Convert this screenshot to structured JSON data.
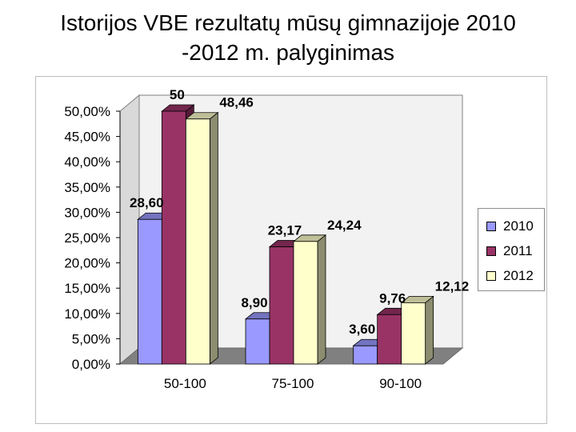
{
  "title": {
    "line1": "Istorijos VBE rezultatų mūsų gimnazijoje 2010",
    "line2": "-2012 m. palyginimas"
  },
  "colors": {
    "s2010": "#9999ff",
    "s2011": "#993366",
    "s2012": "#ffffcc",
    "wall": "#f2f2f2",
    "floor": "#808080"
  },
  "chart_data": {
    "type": "bar",
    "subtype": "3d-clustered-column",
    "categories": [
      "50-100",
      "75-100",
      "90-100"
    ],
    "series": [
      {
        "name": "2010",
        "values": [
          28.6,
          8.9,
          3.6
        ],
        "labels": [
          "28,60",
          "8,90",
          "3,60"
        ]
      },
      {
        "name": "2011",
        "values": [
          50,
          23.17,
          9.76
        ],
        "labels": [
          "50",
          "23,17",
          "9,76"
        ]
      },
      {
        "name": "2012",
        "values": [
          48.46,
          24.24,
          12.12
        ],
        "labels": [
          "48,46",
          "24,24",
          "12,12"
        ]
      }
    ],
    "ylim": [
      0,
      50
    ],
    "y_ticks": [
      "0,00%",
      "5,00%",
      "10,00%",
      "15,00%",
      "20,00%",
      "25,00%",
      "30,00%",
      "35,00%",
      "40,00%",
      "45,00%",
      "50,00%"
    ],
    "grid": false,
    "legend": "right"
  }
}
